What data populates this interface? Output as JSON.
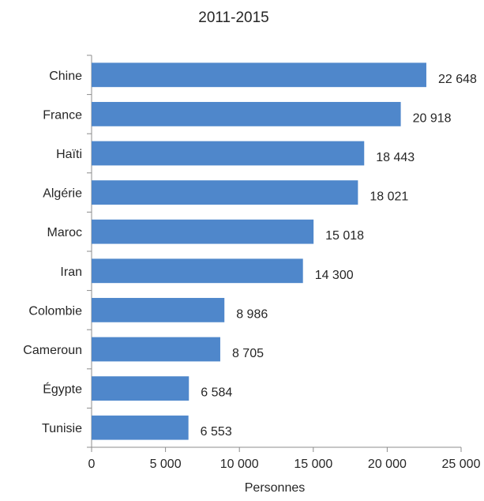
{
  "chart_data": {
    "type": "bar",
    "orientation": "horizontal",
    "title": "2011-2015",
    "xlabel": "Personnes",
    "ylabel": "",
    "categories": [
      "Chine",
      "France",
      "Haïti",
      "Algérie",
      "Maroc",
      "Iran",
      "Colombie",
      "Cameroun",
      "Égypte",
      "Tunisie"
    ],
    "values": [
      22648,
      20918,
      18443,
      18021,
      15018,
      14300,
      8986,
      8705,
      6584,
      6553
    ],
    "value_labels": [
      "22 648",
      "20 918",
      "18 443",
      "18 021",
      "15 018",
      "14 300",
      "8 986",
      "8 705",
      "6 584",
      "6 553"
    ],
    "xlim": [
      0,
      25000
    ],
    "xticks": [
      0,
      5000,
      10000,
      15000,
      20000,
      25000
    ],
    "xtick_labels": [
      "0",
      "5 000",
      "10 000",
      "15 000",
      "20 000",
      "25 000"
    ],
    "bar_color": "#4F87CB",
    "grid": false,
    "legend": "none"
  }
}
